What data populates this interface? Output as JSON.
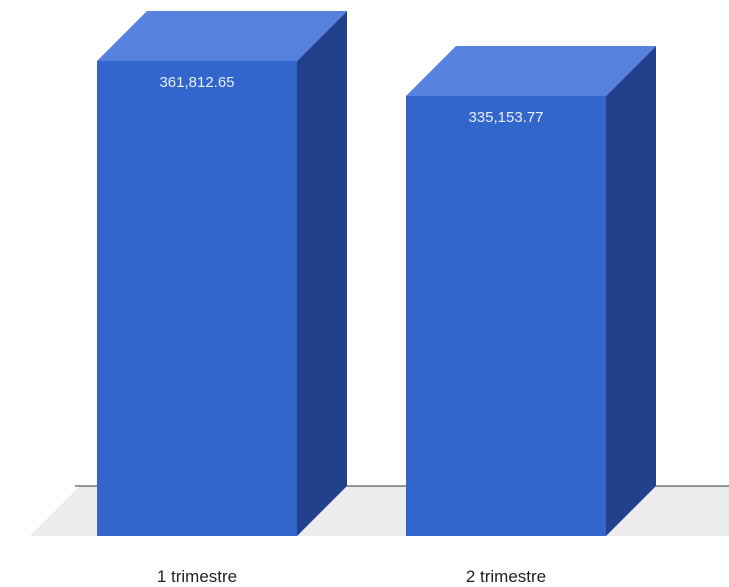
{
  "chart_data": {
    "type": "bar",
    "categories": [
      "1 trimestre",
      "2 trimestre"
    ],
    "values": [
      361812.65,
      335153.77
    ],
    "data_labels": [
      "361,812.65",
      "335,153.77"
    ],
    "title": "",
    "xlabel": "",
    "ylabel": "",
    "ylim": [
      0,
      361812.65
    ],
    "grid": false,
    "style": "3d",
    "colors": {
      "front": "#3366cc",
      "top": "#5582dc",
      "side": "#22408c",
      "floor": "#ececec",
      "baseline": "#333333"
    }
  }
}
